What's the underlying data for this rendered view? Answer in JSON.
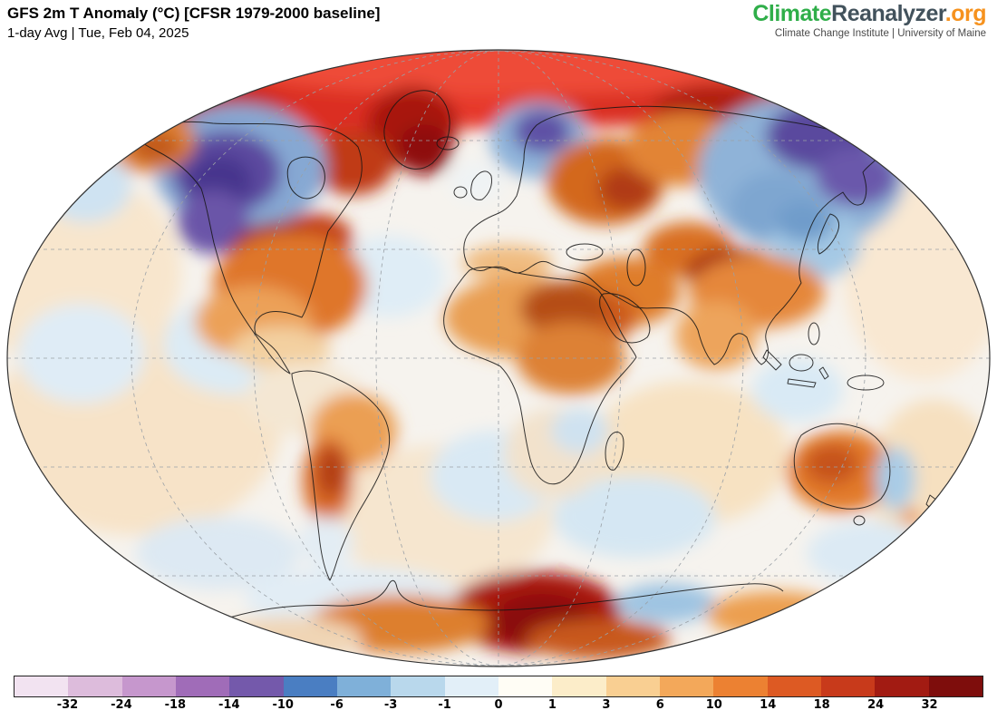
{
  "header": {
    "title": "GFS 2m T Anomaly (°C) [CFSR 1979-2000 baseline]",
    "subtitle": "1-day Avg | Tue, Feb 04, 2025"
  },
  "logo": {
    "part_climate": "Climate",
    "part_reanalyzer": "Reanalyzer",
    "part_org": ".org",
    "tagline": "Climate Change Institute | University of Maine",
    "colors": {
      "climate": "#2fae49",
      "reanalyzer": "#42525c",
      "org": "#f6921e"
    }
  },
  "colorbar": {
    "tick_labels": [
      "-32",
      "-24",
      "-18",
      "-14",
      "-10",
      "-6",
      "-3",
      "-1",
      "0",
      "1",
      "3",
      "6",
      "10",
      "14",
      "18",
      "24",
      "32"
    ],
    "segment_colors": [
      "#f2e3f1",
      "#ddbcdc",
      "#c697cd",
      "#a06cb8",
      "#7459ab",
      "#4a7ec2",
      "#7fb0d9",
      "#b9d8ec",
      "#e2eff8",
      "#fffdf5",
      "#fcedc9",
      "#f9cf92",
      "#f3a85a",
      "#ec8132",
      "#dd5a23",
      "#c83a1b",
      "#a21b12",
      "#7e0d0c"
    ]
  }
}
